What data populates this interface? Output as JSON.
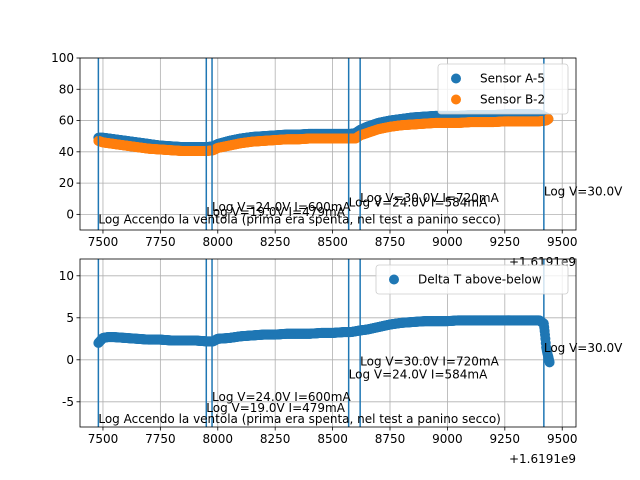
{
  "chart_data": [
    {
      "type": "scatter",
      "x_offset_label": "+1.6191e9",
      "xlim": [
        7400,
        9560
      ],
      "ylim": [
        -10,
        100
      ],
      "x_ticks": [
        7500,
        7750,
        8000,
        8250,
        8500,
        8750,
        9000,
        9250,
        9500
      ],
      "y_ticks": [
        0,
        20,
        40,
        60,
        80,
        100
      ],
      "grid": true,
      "legend_position": "top-right",
      "series": [
        {
          "name": "Sensor A-5",
          "color": "#1f77b4",
          "x": [
            7480,
            7500,
            7550,
            7600,
            7650,
            7700,
            7750,
            7800,
            7850,
            7900,
            7950,
            7980,
            8000,
            8050,
            8100,
            8150,
            8200,
            8250,
            8300,
            8350,
            8400,
            8450,
            8500,
            8550,
            8580,
            8600,
            8620,
            8650,
            8700,
            8750,
            8800,
            8850,
            8900,
            8950,
            9000,
            9050,
            9100,
            9150,
            9200,
            9250,
            9300,
            9350,
            9400,
            9430,
            9440
          ],
          "y": [
            49,
            49,
            48,
            47,
            46,
            45,
            44,
            43.5,
            43,
            43,
            43,
            43.5,
            45,
            47,
            48.5,
            49.5,
            50,
            50.5,
            51,
            51,
            51.5,
            51.5,
            51.5,
            51.5,
            51.5,
            52,
            54,
            56,
            58.5,
            60,
            61,
            62,
            62.5,
            63,
            63,
            63,
            63.5,
            63.5,
            63.5,
            64,
            64,
            64,
            64,
            62,
            61
          ]
        },
        {
          "name": "Sensor B-2",
          "color": "#ff7f0e",
          "x": [
            7480,
            7500,
            7550,
            7600,
            7650,
            7700,
            7750,
            7800,
            7850,
            7900,
            7950,
            7980,
            8000,
            8050,
            8100,
            8150,
            8200,
            8250,
            8300,
            8350,
            8400,
            8450,
            8500,
            8550,
            8580,
            8600,
            8620,
            8650,
            8700,
            8750,
            8800,
            8850,
            8900,
            8950,
            9000,
            9050,
            9100,
            9150,
            9200,
            9250,
            9300,
            9350,
            9400,
            9430,
            9440
          ],
          "y": [
            47,
            46,
            45,
            44,
            43,
            42,
            41.5,
            41,
            40.5,
            40.5,
            40.5,
            41,
            42.5,
            44,
            45.5,
            46.5,
            47,
            47.5,
            48,
            48,
            48.5,
            48.5,
            48.5,
            48.5,
            48.5,
            48.5,
            50.5,
            52,
            54.5,
            56,
            57,
            57.5,
            58,
            58.5,
            58.5,
            58.5,
            59,
            59,
            59,
            59.5,
            59.5,
            59.5,
            59.5,
            60,
            61
          ]
        }
      ],
      "vlines": [
        7480,
        7950,
        7975,
        8570,
        8620,
        9420
      ],
      "annotations": [
        {
          "x": 7480,
          "y": -6,
          "text": "Log Accendo la ventola (prima era spenta, nel test a panino secco)"
        },
        {
          "x": 7950,
          "y": -1,
          "text": "Log V=19.0V I=479mA"
        },
        {
          "x": 7975,
          "y": 2,
          "text": "Log V=24.0V I=600mA"
        },
        {
          "x": 8570,
          "y": 5,
          "text": "Log V=24.0V I=584mA"
        },
        {
          "x": 8620,
          "y": 8,
          "text": "Log V=30.0V I=720mA"
        },
        {
          "x": 9420,
          "y": 12,
          "text": "Log V=30.0V"
        }
      ]
    },
    {
      "type": "scatter",
      "x_offset_label": "+1.6191e9",
      "xlim": [
        7400,
        9560
      ],
      "ylim": [
        -8,
        12
      ],
      "x_ticks": [
        7500,
        7750,
        8000,
        8250,
        8500,
        8750,
        9000,
        9250,
        9500
      ],
      "y_ticks": [
        -5,
        0,
        5,
        10
      ],
      "grid": true,
      "legend_position": "top-right",
      "series": [
        {
          "name": "Delta T above-below",
          "color": "#1f77b4",
          "x": [
            7480,
            7490,
            7500,
            7520,
            7550,
            7600,
            7650,
            7700,
            7750,
            7800,
            7850,
            7900,
            7950,
            7980,
            8000,
            8050,
            8100,
            8150,
            8200,
            8250,
            8300,
            8350,
            8400,
            8450,
            8500,
            8550,
            8580,
            8600,
            8620,
            8650,
            8700,
            8750,
            8800,
            8850,
            8900,
            8950,
            9000,
            9050,
            9100,
            9150,
            9200,
            9250,
            9300,
            9350,
            9400,
            9420,
            9425,
            9430,
            9435,
            9440,
            9445
          ],
          "y": [
            2,
            2.3,
            2.6,
            2.7,
            2.7,
            2.6,
            2.5,
            2.4,
            2.4,
            2.3,
            2.3,
            2.3,
            2.2,
            2.2,
            2.5,
            2.6,
            2.8,
            2.9,
            3.0,
            3.0,
            3.1,
            3.1,
            3.1,
            3.2,
            3.2,
            3.3,
            3.3,
            3.4,
            3.5,
            3.6,
            3.9,
            4.2,
            4.4,
            4.5,
            4.6,
            4.6,
            4.6,
            4.7,
            4.7,
            4.7,
            4.7,
            4.7,
            4.7,
            4.7,
            4.7,
            4.3,
            3.0,
            1.5,
            0.8,
            0.3,
            -0.3
          ]
        }
      ],
      "vlines": [
        7480,
        7950,
        7975,
        8570,
        8620,
        9420
      ],
      "annotations": [
        {
          "x": 7480,
          "y": -7.5,
          "text": "Log Accendo la ventola (prima era spenta, nel test a panino secco)"
        },
        {
          "x": 7950,
          "y": -6.2,
          "text": "Log V=19.0V I=479mA"
        },
        {
          "x": 7975,
          "y": -4.9,
          "text": "Log V=24.0V I=600mA"
        },
        {
          "x": 8570,
          "y": -2.2,
          "text": "Log V=24.0V I=584mA"
        },
        {
          "x": 8620,
          "y": -0.7,
          "text": "Log V=30.0V I=720mA"
        },
        {
          "x": 9420,
          "y": 0.9,
          "text": "Log V=30.0V"
        }
      ]
    }
  ]
}
